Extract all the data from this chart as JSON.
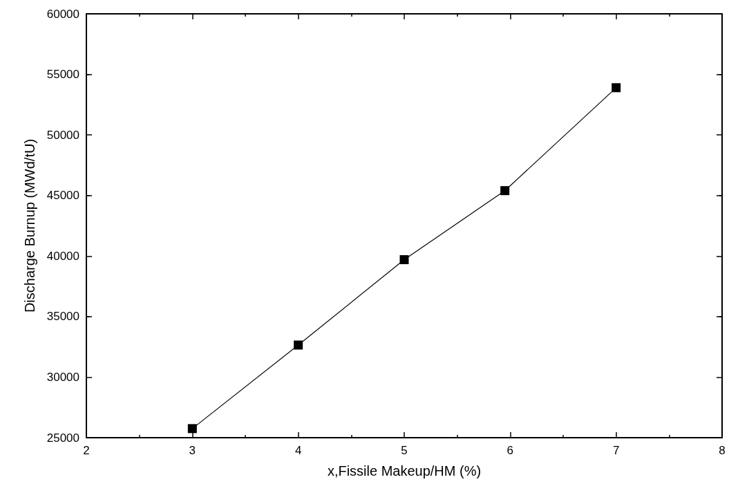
{
  "chart_data": {
    "type": "line",
    "xlabel": "x,Fissile Makeup/HM (%)",
    "ylabel": "Discharge Burnup (MWd/tU)",
    "x": [
      3,
      4,
      5,
      5.95,
      7
    ],
    "series": [
      {
        "color": "#000000",
        "values": [
          25750,
          32650,
          39700,
          45400,
          53900
        ]
      }
    ],
    "xlim": [
      2,
      8
    ],
    "xticks": [
      2,
      3,
      4,
      5,
      6,
      7,
      8
    ],
    "ylim": [
      25000,
      60000
    ],
    "yticks": [
      25000,
      30000,
      35000,
      40000,
      45000,
      50000,
      55000,
      60000
    ],
    "marker": "square",
    "line_style": "solid",
    "grid": false
  }
}
